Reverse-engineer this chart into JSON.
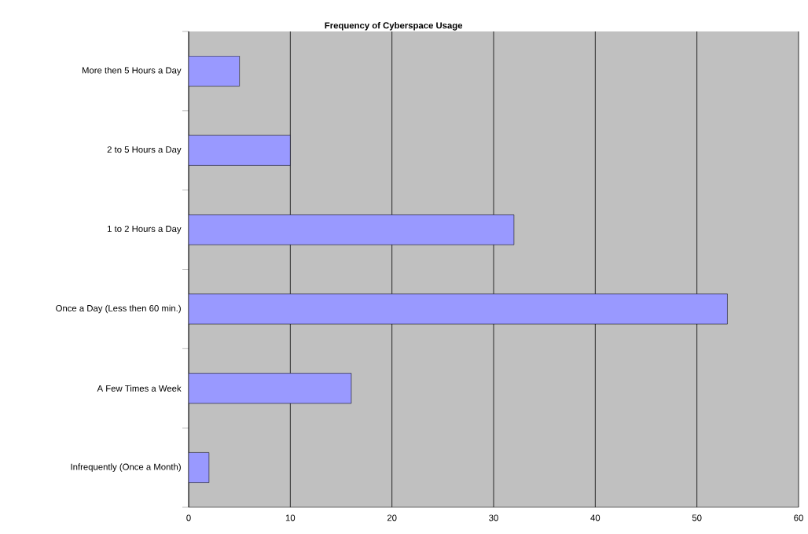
{
  "chart_data": {
    "type": "bar",
    "orientation": "horizontal",
    "title": "Frequency of Cyberspace Usage",
    "categories": [
      "More then 5 Hours a Day",
      "2 to 5 Hours a Day",
      "1 to 2 Hours a Day",
      "Once a Day (Less then 60 min.)",
      "A Few Times a Week",
      "Infrequently (Once a Month)"
    ],
    "values": [
      5,
      10,
      32,
      53,
      16,
      2
    ],
    "color": "#9999ff",
    "xlim": [
      0,
      60
    ],
    "xticks": [
      0,
      10,
      20,
      30,
      40,
      50,
      60
    ],
    "grid": "x"
  }
}
